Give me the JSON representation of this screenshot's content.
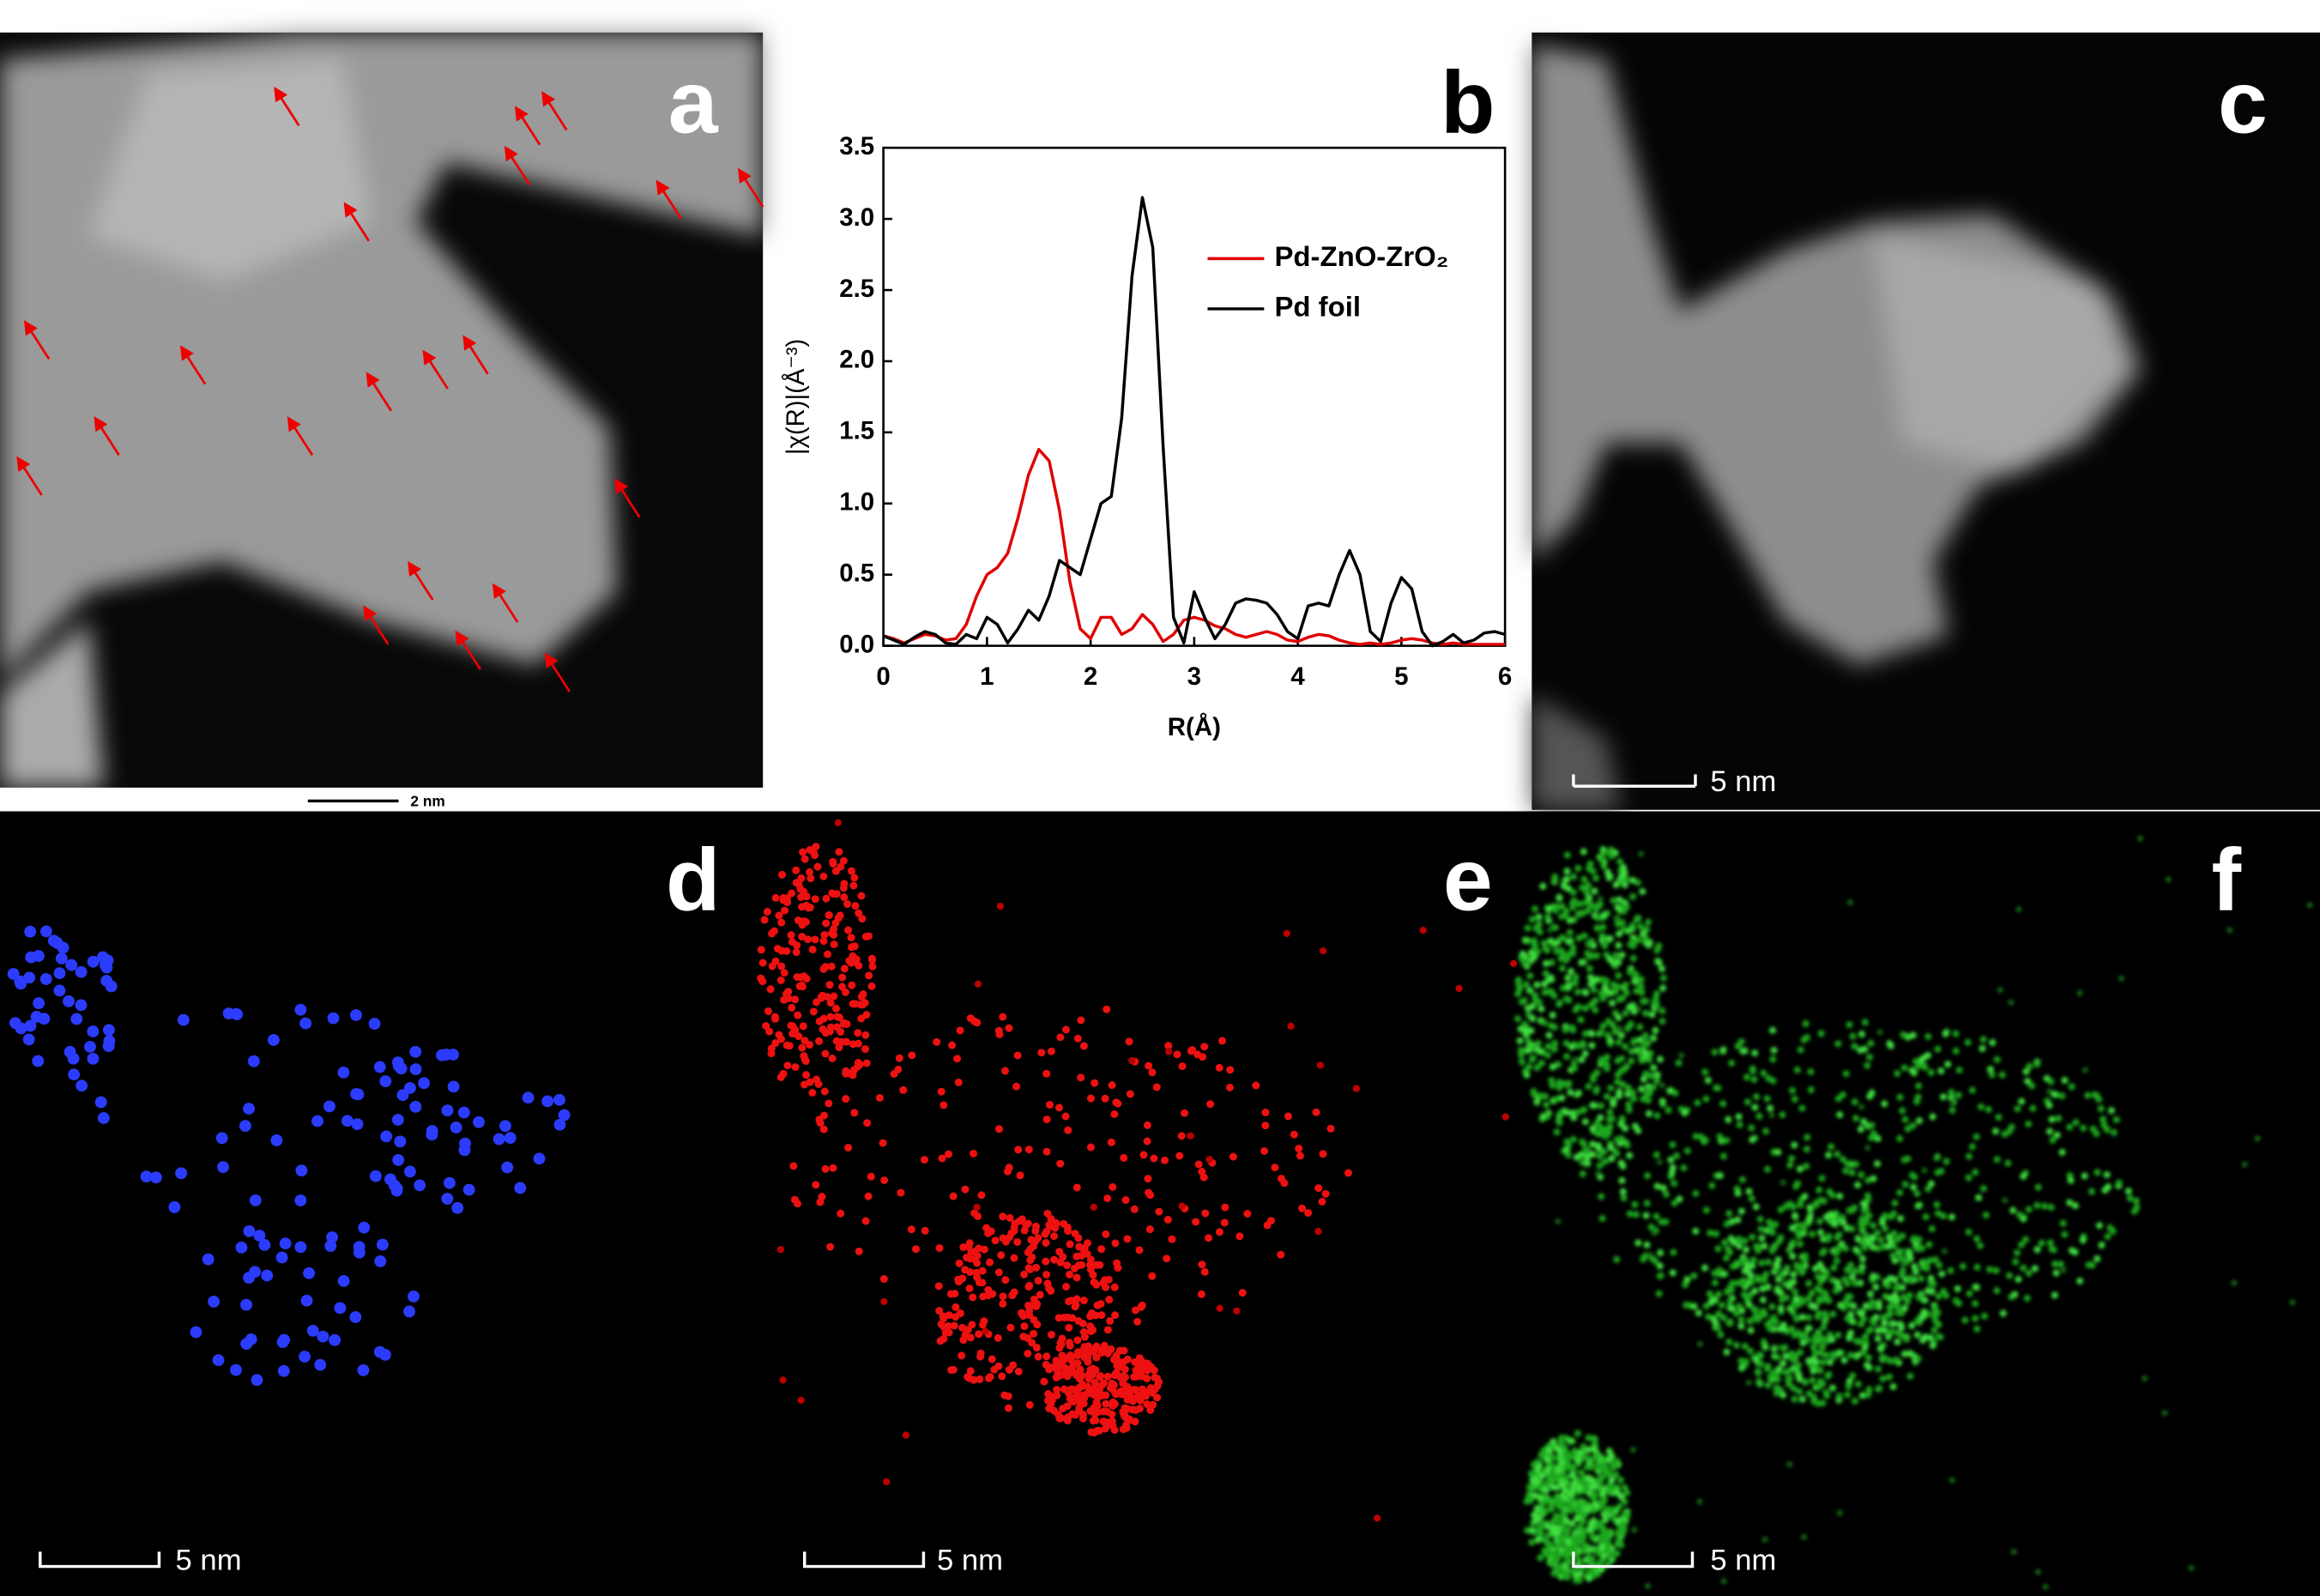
{
  "panels": [
    {
      "label": "a",
      "scale_bar": "2 nm"
    },
    {
      "label": "b"
    },
    {
      "label": "c",
      "scale_bar": "5 nm"
    },
    {
      "label": "d",
      "scale_bar": "5 nm"
    },
    {
      "label": "e",
      "scale_bar": "5 nm"
    },
    {
      "label": "f",
      "scale_bar": "5 nm"
    }
  ],
  "chart_data": {
    "type": "line",
    "x_label": "R(Å)",
    "y_label": "|χ(R)|(Å⁻³)",
    "x": [
      0,
      0.1,
      0.2,
      0.3,
      0.4,
      0.5,
      0.6,
      0.7,
      0.8,
      0.9,
      1,
      1.1,
      1.2,
      1.3,
      1.4,
      1.5,
      1.6,
      1.7,
      1.8,
      1.9,
      2,
      2.1,
      2.2,
      2.3,
      2.4,
      2.5,
      2.6,
      2.7,
      2.8,
      2.9,
      3,
      3.1,
      3.2,
      3.3,
      3.4,
      3.5,
      3.6,
      3.7,
      3.8,
      3.9,
      4,
      4.1,
      4.2,
      4.3,
      4.4,
      4.5,
      4.6,
      4.7,
      4.8,
      4.9,
      5,
      5.1,
      5.2,
      5.3,
      5.4,
      5.5,
      5.6,
      5.7,
      5.8,
      5.9,
      6
    ],
    "series": [
      {
        "name": "Pd-ZnO-ZrO₂",
        "color": "#e00000",
        "values": [
          0.07,
          0.05,
          0.02,
          0.05,
          0.08,
          0.07,
          0.04,
          0.05,
          0.15,
          0.35,
          0.5,
          0.55,
          0.65,
          0.9,
          1.2,
          1.38,
          1.3,
          0.95,
          0.45,
          0.12,
          0.05,
          0.2,
          0.2,
          0.08,
          0.12,
          0.22,
          0.15,
          0.03,
          0.08,
          0.18,
          0.2,
          0.18,
          0.14,
          0.12,
          0.08,
          0.06,
          0.08,
          0.1,
          0.08,
          0.04,
          0.03,
          0.06,
          0.08,
          0.07,
          0.04,
          0.02,
          0.01,
          0.02,
          0.01,
          0.02,
          0.04,
          0.05,
          0.04,
          0.02,
          0.01,
          0.02,
          0.01,
          0.01,
          0.01,
          0.01,
          0.01
        ]
      },
      {
        "name": "Pd foil",
        "color": "#000000",
        "values": [
          0.07,
          0.04,
          0.01,
          0.06,
          0.1,
          0.08,
          0.02,
          0.01,
          0.08,
          0.05,
          0.2,
          0.15,
          0.02,
          0.12,
          0.25,
          0.18,
          0.35,
          0.6,
          0.55,
          0.5,
          0.75,
          1.0,
          1.05,
          1.6,
          2.6,
          3.15,
          2.8,
          1.4,
          0.2,
          0.02,
          0.38,
          0.2,
          0.05,
          0.15,
          0.3,
          0.33,
          0.32,
          0.3,
          0.22,
          0.1,
          0.05,
          0.28,
          0.3,
          0.28,
          0.5,
          0.67,
          0.5,
          0.1,
          0.03,
          0.3,
          0.48,
          0.4,
          0.1,
          0,
          0.03,
          0.08,
          0.02,
          0.04,
          0.09,
          0.1,
          0.08
        ]
      }
    ],
    "xlim": [
      0,
      6
    ],
    "xticks": [
      0,
      1,
      2,
      3,
      4,
      5,
      6
    ],
    "ylim": [
      0,
      3.5
    ],
    "yticks": [
      {
        "value": 0,
        "label": "0.0"
      },
      {
        "value": 0.5,
        "label": "0.5"
      },
      {
        "value": 1,
        "label": "1.0"
      },
      {
        "value": 1.5,
        "label": "1.5"
      },
      {
        "value": 2,
        "label": "2.0"
      },
      {
        "value": 2.5,
        "label": "2.5"
      },
      {
        "value": 3,
        "label": "3.0"
      },
      {
        "value": 3.5,
        "label": "3.5"
      }
    ],
    "legend": "upper right"
  }
}
